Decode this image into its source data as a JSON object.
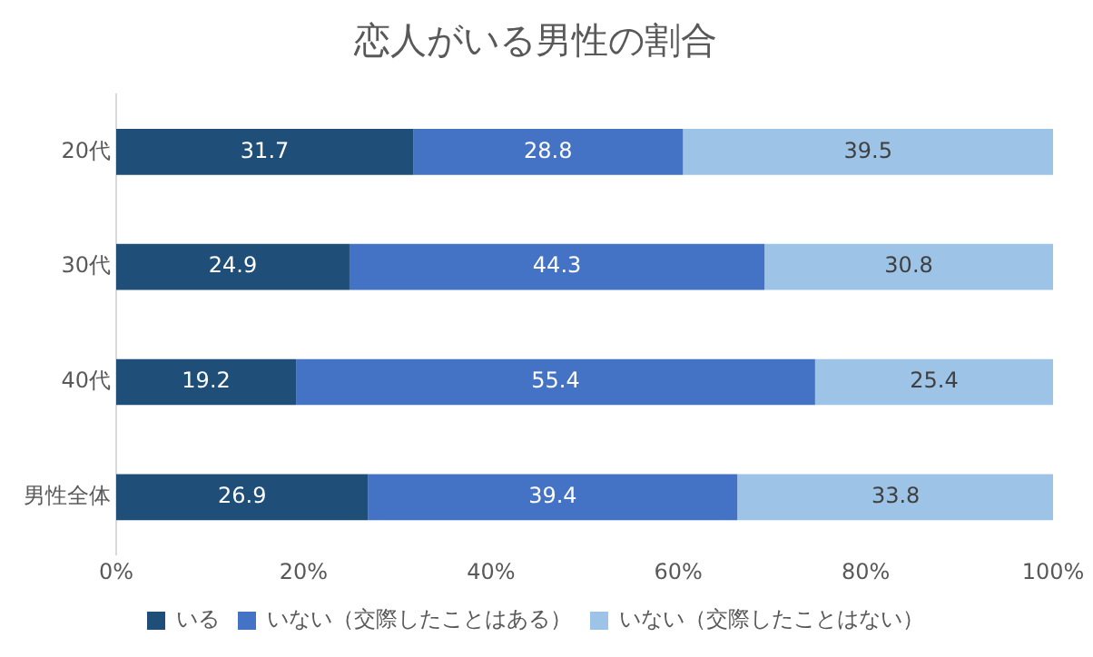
{
  "chart_data": {
    "type": "bar",
    "title": "恋人がいる男性の割合",
    "orientation": "horizontal",
    "stacked": true,
    "categories": [
      "20代",
      "30代",
      "40代",
      "男性全体"
    ],
    "series": [
      {
        "name": "いる",
        "color": "#1f4e79",
        "values": [
          31.7,
          24.9,
          19.2,
          26.9
        ]
      },
      {
        "name": "いない（交際したことはある）",
        "color": "#4472c4",
        "values": [
          28.8,
          44.3,
          55.4,
          39.4
        ]
      },
      {
        "name": "いない（交際したことはない）",
        "color": "#9dc3e6",
        "values": [
          39.5,
          30.8,
          25.4,
          33.8
        ]
      }
    ],
    "xlim": [
      0,
      100
    ],
    "xticks": [
      {
        "value": 0,
        "label": "0%"
      },
      {
        "value": 20,
        "label": "20%"
      },
      {
        "value": 40,
        "label": "40%"
      },
      {
        "value": 60,
        "label": "60%"
      },
      {
        "value": 80,
        "label": "80%"
      },
      {
        "value": 100,
        "label": "100%"
      }
    ],
    "data_labels": true,
    "legend": "bottom",
    "grid": false
  }
}
